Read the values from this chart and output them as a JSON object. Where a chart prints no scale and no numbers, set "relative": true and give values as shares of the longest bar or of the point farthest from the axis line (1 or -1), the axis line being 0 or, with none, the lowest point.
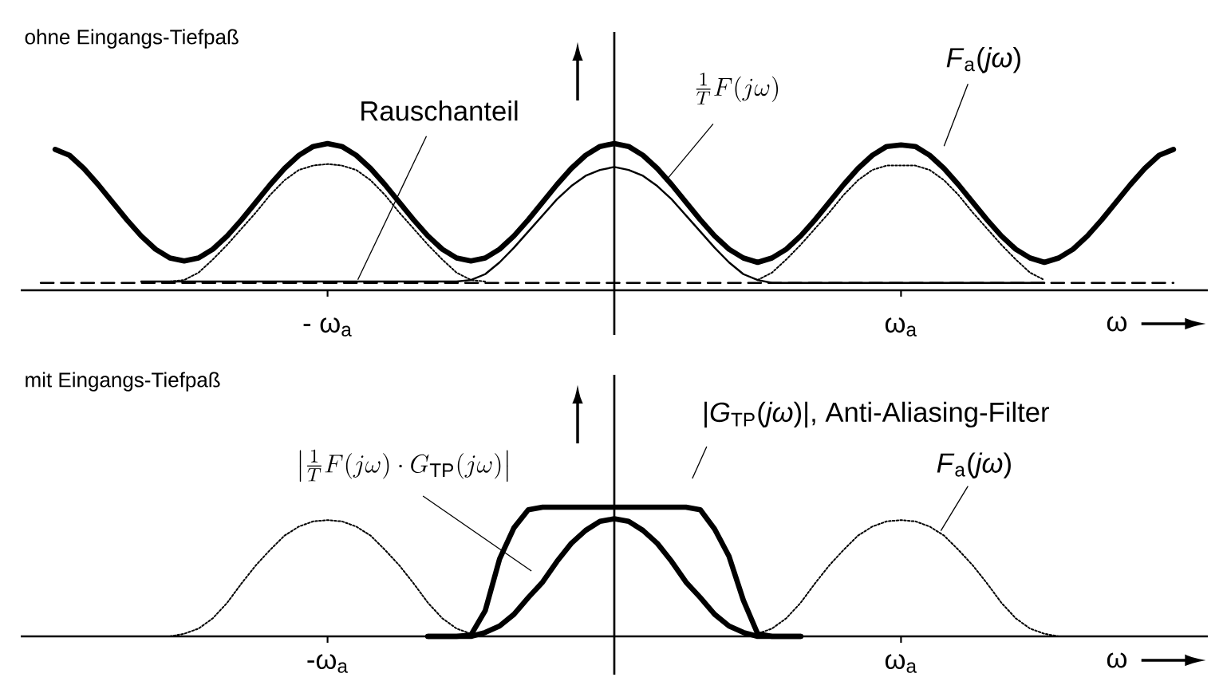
{
  "chart_data": [
    {
      "type": "line",
      "title": "ohne Eingangs-Tiefpaß",
      "xlabel": "ω",
      "relative": true,
      "categories": [
        null,
        null,
        null,
        null,
        null,
        null,
        null,
        null,
        null,
        null,
        null,
        null,
        null,
        null,
        null,
        null,
        null,
        null,
        null,
        null,
        "- ω$_{a}$",
        null,
        null,
        null,
        null,
        null,
        null,
        null,
        null,
        null,
        null,
        null,
        null,
        null,
        null,
        null,
        null,
        null,
        null,
        null,
        null,
        null,
        null,
        null,
        null,
        null,
        null,
        null,
        null,
        null,
        null,
        null,
        null,
        null,
        null,
        null,
        null,
        null,
        null,
        null,
        "ω$_{a}$",
        null,
        null,
        null,
        null,
        null,
        null,
        null,
        null,
        null,
        null,
        null,
        null,
        null,
        null,
        null,
        null,
        null,
        null,
        null,
        null
      ],
      "series": [
        {
          "name": "*F*$_{a}$(*jω*)",
          "color": "#000000",
          "line_style": "solid",
          "values": [
            null,
            0.96,
            0.92,
            0.83,
            0.72,
            0.6,
            0.48,
            0.37,
            0.28,
            0.22,
            0.2,
            0.22,
            0.28,
            0.37,
            0.48,
            0.6,
            0.72,
            0.83,
            0.92,
            0.98,
            1,
            0.98,
            0.92,
            0.83,
            0.72,
            0.6,
            0.48,
            0.37,
            0.28,
            0.22,
            0.2,
            0.22,
            0.28,
            0.37,
            0.48,
            0.6,
            0.72,
            0.83,
            0.92,
            0.98,
            1,
            0.98,
            0.92,
            0.83,
            0.72,
            0.6,
            0.48,
            0.37,
            0.28,
            0.22,
            0.19,
            0.22,
            0.28,
            0.37,
            0.48,
            0.6,
            0.72,
            0.83,
            0.92,
            0.98,
            0.99,
            0.98,
            0.92,
            0.83,
            0.72,
            0.6,
            0.48,
            0.37,
            0.28,
            0.22,
            0.19,
            0.22,
            0.28,
            0.37,
            0.48,
            0.6,
            0.72,
            0.83,
            0.92,
            0.96,
            null
          ]
        },
        {
          "name": "\\frac{1}{T}F(j\\omega)",
          "color": "#000000",
          "line_style": "solid",
          "values": [
            null,
            null,
            null,
            null,
            null,
            null,
            null,
            0.06,
            0.06,
            0.06,
            0.06,
            0.06,
            0.06,
            0.06,
            0.06,
            0.06,
            0.06,
            0.06,
            0.06,
            0.06,
            0.06,
            0.06,
            0.06,
            0.06,
            0.06,
            0.06,
            0.06,
            0.06,
            0.06,
            0.06,
            0.07,
            0.11,
            0.19,
            0.29,
            0.4,
            0.51,
            0.62,
            0.71,
            0.78,
            0.82,
            0.84,
            0.82,
            0.78,
            0.71,
            0.62,
            0.51,
            0.4,
            0.29,
            0.19,
            0.11,
            0.07,
            0.05,
            0.05,
            0.05,
            0.05,
            0.05,
            0.05,
            0.05,
            0.05,
            0.05,
            0.05,
            0.05,
            0.05,
            0.05,
            0.05,
            0.05,
            0.05,
            0.05,
            0.05,
            0.05,
            0.05,
            null,
            null,
            null,
            null,
            null,
            null,
            null,
            null,
            null,
            null
          ]
        },
        {
          "color": "#000000",
          "line_style": "dotted",
          "values": [
            null,
            null,
            null,
            null,
            null,
            null,
            null,
            null,
            null,
            0.06,
            0.07,
            0.12,
            0.21,
            0.31,
            0.42,
            0.53,
            0.65,
            0.75,
            0.82,
            0.85,
            0.86,
            0.85,
            0.82,
            0.75,
            0.65,
            0.53,
            0.42,
            0.31,
            0.21,
            0.12,
            0.07,
            0.06,
            null,
            null,
            null,
            null,
            null,
            null,
            null,
            null,
            null,
            null,
            null,
            null,
            null,
            null,
            null,
            null,
            null,
            null,
            0.07,
            0.12,
            0.21,
            0.31,
            0.42,
            0.53,
            0.65,
            0.75,
            0.82,
            0.85,
            0.85,
            0.85,
            0.82,
            0.75,
            0.65,
            0.53,
            0.42,
            0.31,
            0.21,
            0.12,
            0.07,
            null,
            null,
            null,
            null,
            null,
            null,
            null,
            null,
            null,
            null
          ]
        },
        {
          "name": "Rauschanteil",
          "color": "#000000",
          "line_style": "dashed",
          "values": [
            0.05,
            0.05,
            0.05,
            0.05,
            0.05,
            0.05,
            0.05,
            0.05,
            0.05,
            0.05,
            0.05,
            0.05,
            0.05,
            0.05,
            0.05,
            0.05,
            0.05,
            0.05,
            0.05,
            0.05,
            0.05,
            0.05,
            0.05,
            0.05,
            0.05,
            0.05,
            0.05,
            0.05,
            0.05,
            0.05,
            0.05,
            0.05,
            0.05,
            0.05,
            0.05,
            0.05,
            0.05,
            0.05,
            0.05,
            0.05,
            0.05,
            0.05,
            0.05,
            0.05,
            0.05,
            0.05,
            0.05,
            0.05,
            0.05,
            0.05,
            0.05,
            0.05,
            0.05,
            0.05,
            0.05,
            0.05,
            0.05,
            0.05,
            0.05,
            0.05,
            0.05,
            0.05,
            0.05,
            0.05,
            0.05,
            0.05,
            0.05,
            0.05,
            0.05,
            0.05,
            0.05,
            0.05,
            0.05,
            0.05,
            0.05,
            0.05,
            0.05,
            0.05,
            0.05,
            0.05,
            null
          ]
        }
      ]
    },
    {
      "type": "line",
      "title": "mit Eingangs-Tiefpaß",
      "xlabel": "ω",
      "relative": true,
      "categories": [
        null,
        null,
        null,
        null,
        null,
        null,
        null,
        null,
        null,
        null,
        null,
        null,
        null,
        null,
        null,
        null,
        null,
        null,
        null,
        null,
        "-ω$_{a}$",
        null,
        null,
        null,
        null,
        null,
        null,
        null,
        null,
        null,
        null,
        null,
        null,
        null,
        null,
        null,
        null,
        null,
        null,
        null,
        null,
        null,
        null,
        null,
        null,
        null,
        null,
        null,
        null,
        null,
        null,
        null,
        null,
        null,
        null,
        null,
        null,
        null,
        null,
        null,
        "ω$_{a}$",
        null,
        null,
        null,
        null,
        null,
        null,
        null,
        null,
        null,
        null,
        null,
        null,
        null,
        null,
        null,
        null,
        null,
        null,
        null,
        null
      ],
      "series": [
        {
          "name": "|*G*$_{TP}$(*jω*)|, Anti-Aliasing-Filter",
          "color": "#000000",
          "line_style": "solid",
          "values": [
            null,
            null,
            null,
            null,
            null,
            null,
            null,
            null,
            null,
            null,
            null,
            null,
            null,
            null,
            null,
            null,
            null,
            null,
            null,
            null,
            null,
            null,
            null,
            null,
            null,
            null,
            null,
            0,
            0,
            0,
            0.01,
            0.2,
            0.6,
            0.84,
            0.98,
            1,
            1,
            1,
            1,
            1,
            1,
            1,
            1,
            1,
            1,
            1,
            0.98,
            0.83,
            0.62,
            0.28,
            0.02,
            0,
            0,
            0,
            null,
            null,
            null,
            null,
            null,
            null,
            null,
            null,
            null,
            null,
            null,
            null,
            null,
            null,
            null,
            null,
            null,
            null,
            null,
            null,
            null,
            null,
            null,
            null,
            null,
            null,
            null
          ]
        },
        {
          "name": "\\left|\\frac{1}{T}F(j\\omega)\\cdot G_{\\mathrm{TP}}(j\\omega)\\right|",
          "color": "#000000",
          "line_style": "solid",
          "values": [
            null,
            null,
            null,
            null,
            null,
            null,
            null,
            null,
            null,
            null,
            null,
            null,
            null,
            null,
            null,
            null,
            null,
            null,
            null,
            null,
            null,
            null,
            null,
            null,
            null,
            null,
            null,
            0,
            0,
            0,
            0,
            0.03,
            0.08,
            0.17,
            0.3,
            0.42,
            0.58,
            0.72,
            0.82,
            0.89,
            0.91,
            0.89,
            0.82,
            0.72,
            0.58,
            0.42,
            0.3,
            0.17,
            0.08,
            0.03,
            0,
            0,
            0,
            0,
            null,
            null,
            null,
            null,
            null,
            null,
            null,
            null,
            null,
            null,
            null,
            null,
            null,
            null,
            null,
            null,
            null,
            null,
            null,
            null,
            null,
            null,
            null,
            null,
            null,
            null,
            null
          ]
        },
        {
          "name": "*F*$_{a}$(*jω*)",
          "color": "#000000",
          "line_style": "dotted",
          "values": [
            null,
            null,
            null,
            null,
            null,
            null,
            null,
            null,
            null,
            0,
            0.02,
            0.06,
            0.14,
            0.26,
            0.41,
            0.55,
            0.67,
            0.78,
            0.85,
            0.89,
            0.9,
            0.89,
            0.85,
            0.78,
            0.67,
            0.55,
            0.41,
            0.26,
            0.14,
            0.06,
            0.02,
            0,
            null,
            null,
            null,
            null,
            null,
            null,
            null,
            null,
            null,
            null,
            null,
            null,
            null,
            null,
            null,
            null,
            null,
            0,
            0.02,
            0.06,
            0.14,
            0.26,
            0.41,
            0.55,
            0.67,
            0.78,
            0.85,
            0.89,
            0.9,
            0.89,
            0.85,
            0.78,
            0.67,
            0.55,
            0.41,
            0.26,
            0.14,
            0.06,
            0.02,
            0,
            null,
            null,
            null,
            null,
            null,
            null,
            null,
            null,
            null
          ]
        }
      ]
    }
  ]
}
